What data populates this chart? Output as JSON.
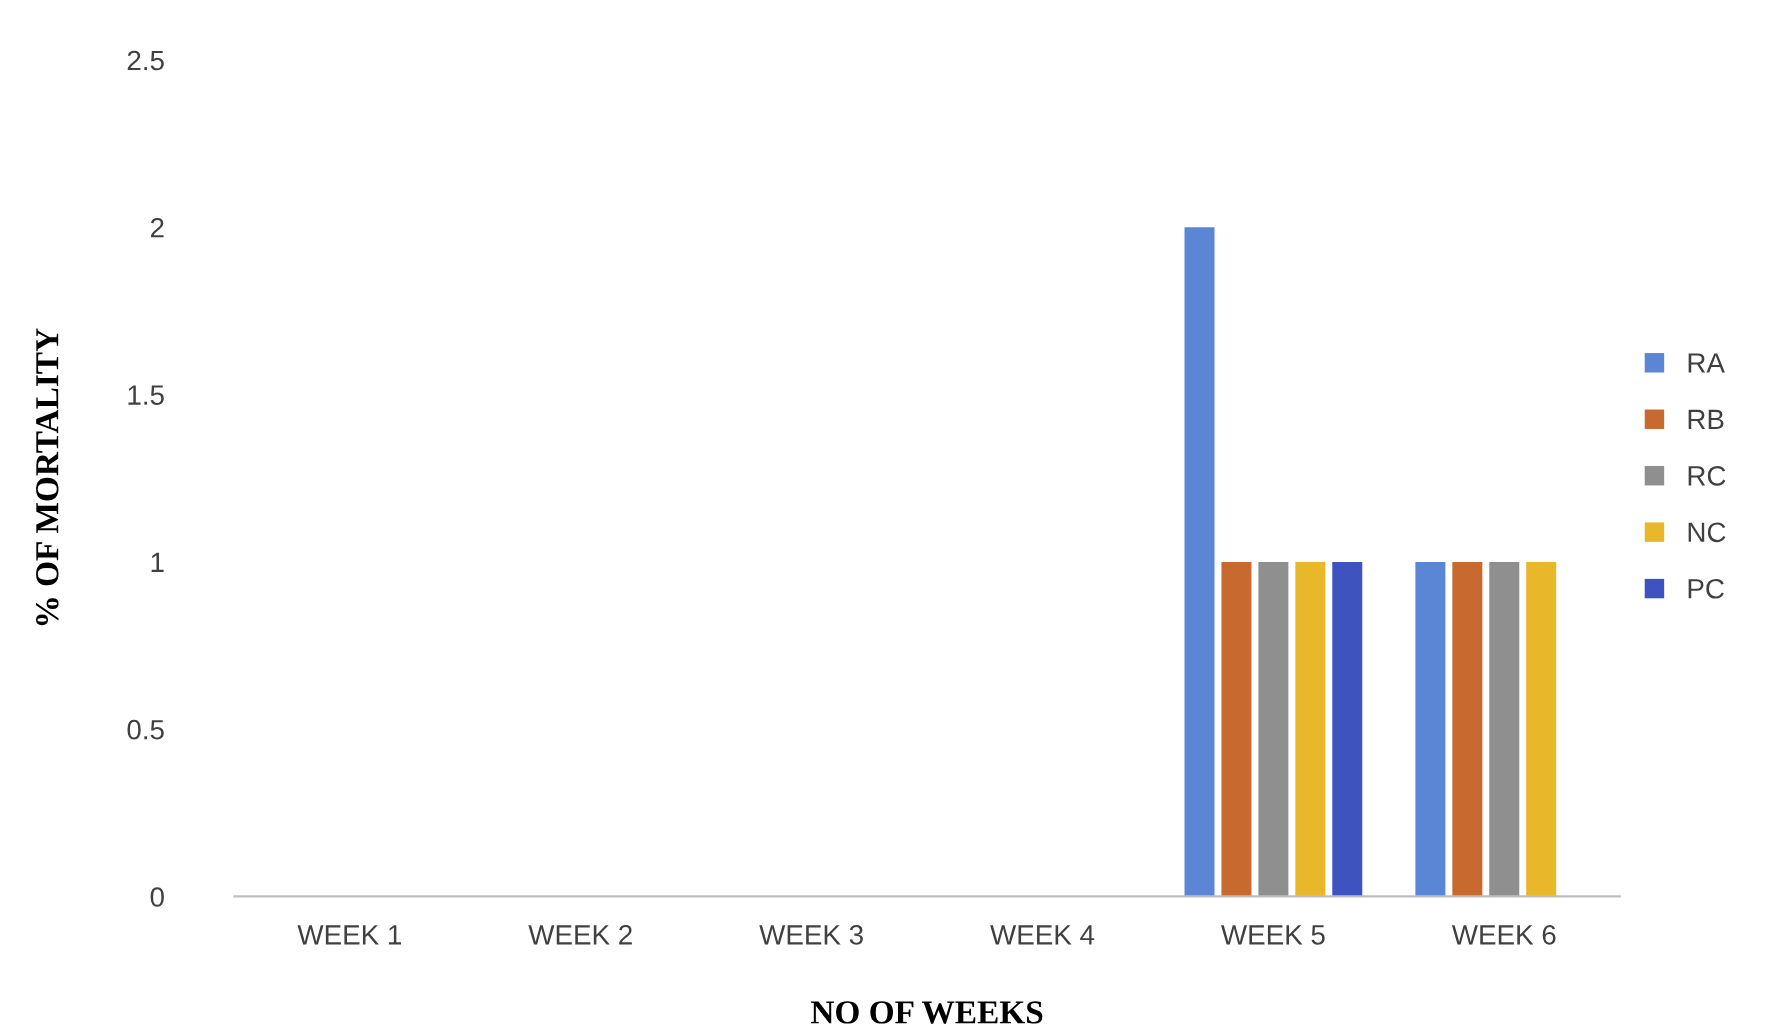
{
  "chart_data": {
    "type": "bar",
    "xlabel": "NO OF WEEKS",
    "ylabel": "% OF MORTALITY",
    "categories": [
      "WEEK 1",
      "WEEK 2",
      "WEEK 3",
      "WEEK 4",
      "WEEK 5",
      "WEEK 6"
    ],
    "series": [
      {
        "name": "RA",
        "color": "#5b86d6",
        "values": [
          0,
          0,
          0,
          0,
          2,
          1
        ]
      },
      {
        "name": "RB",
        "color": "#c8692f",
        "values": [
          0,
          0,
          0,
          0,
          1,
          1
        ]
      },
      {
        "name": "RC",
        "color": "#8f8f8f",
        "values": [
          0,
          0,
          0,
          0,
          1,
          1
        ]
      },
      {
        "name": "NC",
        "color": "#e8b82a",
        "values": [
          0,
          0,
          0,
          0,
          1,
          1
        ]
      },
      {
        "name": "PC",
        "color": "#3e52c0",
        "values": [
          0,
          0,
          0,
          0,
          1,
          0
        ]
      }
    ],
    "ylim": [
      0,
      2.5
    ],
    "yticks": [
      0,
      0.5,
      1,
      1.5,
      2,
      2.5
    ],
    "grid": false,
    "legend": "right"
  }
}
